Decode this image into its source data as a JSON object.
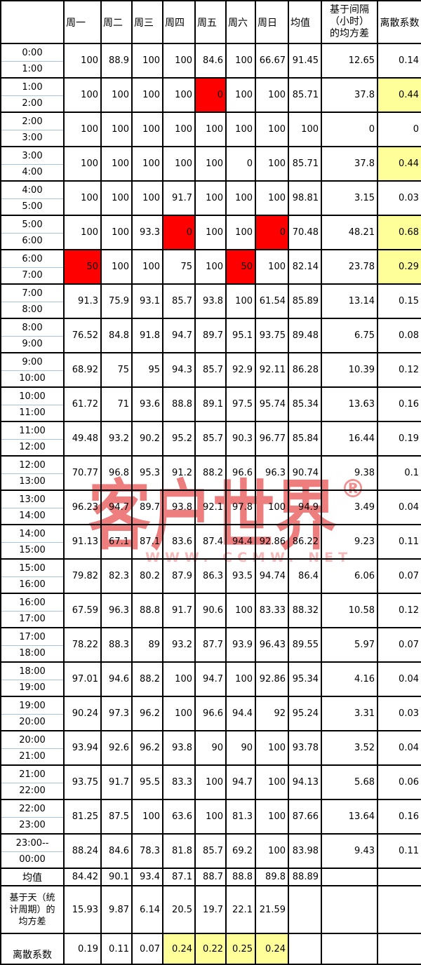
{
  "chart_data": {
    "type": "table",
    "columns": [
      "",
      "周一",
      "周二",
      "周三",
      "周四",
      "周五",
      "周六",
      "周日",
      "均值",
      "基于间隔\n（小时）\n的均方差",
      "离散系数"
    ],
    "time_rows": [
      {
        "time_top": "0:00",
        "time_bottom": "1:00",
        "values": [
          "100",
          "88.9",
          "100",
          "100",
          "84.6",
          "100",
          "66.67",
          "91.45",
          "12.65",
          "0.14"
        ],
        "red_cols": [],
        "highlight_cv": false
      },
      {
        "time_top": "1:00",
        "time_bottom": "2:00",
        "values": [
          "100",
          "100",
          "100",
          "100",
          "0",
          "100",
          "100",
          "85.71",
          "37.8",
          "0.44"
        ],
        "red_cols": [
          4
        ],
        "highlight_cv": true
      },
      {
        "time_top": "2:00",
        "time_bottom": "3:00",
        "values": [
          "100",
          "100",
          "100",
          "100",
          "100",
          "100",
          "100",
          "100",
          "0",
          "0"
        ],
        "red_cols": [],
        "highlight_cv": false
      },
      {
        "time_top": "3:00",
        "time_bottom": "4:00",
        "values": [
          "100",
          "100",
          "100",
          "100",
          "100",
          "0",
          "100",
          "85.71",
          "37.8",
          "0.44"
        ],
        "red_cols": [],
        "highlight_cv": true
      },
      {
        "time_top": "4:00",
        "time_bottom": "5:00",
        "values": [
          "100",
          "100",
          "100",
          "91.7",
          "100",
          "100",
          "100",
          "98.81",
          "3.15",
          "0.03"
        ],
        "red_cols": [],
        "highlight_cv": false
      },
      {
        "time_top": "5:00",
        "time_bottom": "6:00",
        "values": [
          "100",
          "100",
          "93.3",
          "0",
          "100",
          "100",
          "0",
          "70.48",
          "48.21",
          "0.68"
        ],
        "red_cols": [
          3,
          6
        ],
        "highlight_cv": true
      },
      {
        "time_top": "6:00",
        "time_bottom": "7:00",
        "values": [
          "50",
          "100",
          "100",
          "75",
          "100",
          "50",
          "100",
          "82.14",
          "23.78",
          "0.29"
        ],
        "red_cols": [
          0,
          5
        ],
        "highlight_cv": true
      },
      {
        "time_top": "7:00",
        "time_bottom": "8:00",
        "values": [
          "91.3",
          "75.9",
          "93.1",
          "85.7",
          "93.8",
          "100",
          "61.54",
          "85.89",
          "13.14",
          "0.15"
        ],
        "red_cols": [],
        "highlight_cv": false
      },
      {
        "time_top": "8:00",
        "time_bottom": "9:00",
        "values": [
          "76.52",
          "84.8",
          "91.8",
          "94.7",
          "89.7",
          "95.1",
          "93.75",
          "89.48",
          "6.75",
          "0.08"
        ],
        "red_cols": [],
        "highlight_cv": false
      },
      {
        "time_top": "9:00",
        "time_bottom": "10:00",
        "values": [
          "68.92",
          "75",
          "95",
          "94.3",
          "85.7",
          "92.9",
          "92.11",
          "86.28",
          "10.39",
          "0.12"
        ],
        "red_cols": [],
        "highlight_cv": false
      },
      {
        "time_top": "10:00",
        "time_bottom": "11:00",
        "values": [
          "61.72",
          "71",
          "93.6",
          "88.8",
          "89.1",
          "97.5",
          "95.74",
          "85.34",
          "13.63",
          "0.16"
        ],
        "red_cols": [],
        "highlight_cv": false
      },
      {
        "time_top": "11:00",
        "time_bottom": "12:00",
        "values": [
          "49.48",
          "93.2",
          "90.2",
          "95.2",
          "85.7",
          "90.3",
          "96.77",
          "85.84",
          "16.44",
          "0.19"
        ],
        "red_cols": [],
        "highlight_cv": false
      },
      {
        "time_top": "12:00",
        "time_bottom": "13:00",
        "values": [
          "70.77",
          "96.8",
          "95.3",
          "91.2",
          "88.2",
          "96.6",
          "96.3",
          "90.74",
          "9.38",
          "0.1"
        ],
        "red_cols": [],
        "highlight_cv": false
      },
      {
        "time_top": "13:00",
        "time_bottom": "14:00",
        "values": [
          "96.23",
          "94.7",
          "89.7",
          "93.8",
          "92.1",
          "97.8",
          "100",
          "94.9",
          "3.49",
          "0.04"
        ],
        "red_cols": [],
        "highlight_cv": false
      },
      {
        "time_top": "14:00",
        "time_bottom": "15:00",
        "values": [
          "91.13",
          "67.1",
          "87.1",
          "83.6",
          "87.4",
          "94.4",
          "92.86",
          "86.22",
          "9.23",
          "0.11"
        ],
        "red_cols": [],
        "highlight_cv": false
      },
      {
        "time_top": "15:00",
        "time_bottom": "16:00",
        "values": [
          "79.82",
          "82.3",
          "80.2",
          "87.9",
          "86.3",
          "93.5",
          "94.74",
          "86.4",
          "6.06",
          "0.07"
        ],
        "red_cols": [],
        "highlight_cv": false
      },
      {
        "time_top": "16:00",
        "time_bottom": "17:00",
        "values": [
          "67.59",
          "96.3",
          "88.8",
          "91.7",
          "90.6",
          "100",
          "83.33",
          "88.32",
          "10.58",
          "0.12"
        ],
        "red_cols": [],
        "highlight_cv": false
      },
      {
        "time_top": "17:00",
        "time_bottom": "18:00",
        "values": [
          "78.22",
          "88.3",
          "89",
          "93.2",
          "87.7",
          "93.9",
          "96.43",
          "89.55",
          "5.97",
          "0.07"
        ],
        "red_cols": [],
        "highlight_cv": false
      },
      {
        "time_top": "18:00",
        "time_bottom": "19:00",
        "values": [
          "97.01",
          "94.6",
          "88.2",
          "100",
          "94.7",
          "100",
          "92.86",
          "95.34",
          "4.16",
          "0.04"
        ],
        "red_cols": [],
        "highlight_cv": false
      },
      {
        "time_top": "19:00",
        "time_bottom": "20:00",
        "values": [
          "90.24",
          "97.3",
          "96.2",
          "100",
          "96.6",
          "94.4",
          "92",
          "95.24",
          "3.31",
          "0.03"
        ],
        "red_cols": [],
        "highlight_cv": false
      },
      {
        "time_top": "20:00",
        "time_bottom": "21:00",
        "values": [
          "93.94",
          "92.6",
          "96.2",
          "93.8",
          "90",
          "90",
          "100",
          "93.78",
          "3.52",
          "0.04"
        ],
        "red_cols": [],
        "highlight_cv": false
      },
      {
        "time_top": "21:00",
        "time_bottom": "22:00",
        "values": [
          "93.75",
          "91.7",
          "95.5",
          "83.3",
          "100",
          "94.7",
          "100",
          "94.13",
          "5.68",
          "0.06"
        ],
        "red_cols": [],
        "highlight_cv": false
      },
      {
        "time_top": "22:00",
        "time_bottom": "23:00",
        "values": [
          "81.25",
          "87.5",
          "100",
          "63.6",
          "100",
          "81.3",
          "100",
          "87.66",
          "13.64",
          "0.16"
        ],
        "red_cols": [],
        "highlight_cv": false
      },
      {
        "time_top": "23:00--",
        "time_bottom": "00:00",
        "values": [
          "88.24",
          "84.6",
          "78.3",
          "81.8",
          "85.7",
          "69.2",
          "100",
          "83.98",
          "9.43",
          "0.11"
        ],
        "red_cols": [],
        "highlight_cv": false
      }
    ],
    "summary_rows": [
      {
        "label": "均值",
        "values": [
          "84.42",
          "90.1",
          "93.4",
          "87.1",
          "88.7",
          "88.8",
          "89.8",
          "88.89",
          "",
          ""
        ],
        "yellow_cols": []
      },
      {
        "label": "基于天（统\n计周期）的\n均方差",
        "values": [
          "15.93",
          "9.87",
          "6.14",
          "20.5",
          "19.7",
          "22.1",
          "21.59",
          "",
          "",
          ""
        ],
        "yellow_cols": []
      },
      {
        "label": "离散系数",
        "values": [
          "0.19",
          "0.11",
          "0.07",
          "0.24",
          "0.22",
          "0.25",
          "0.24",
          "",
          "",
          ""
        ],
        "yellow_cols": [
          3,
          4,
          5,
          6
        ]
      }
    ]
  },
  "watermark": {
    "text": "客户世界",
    "registered_mark": "®",
    "subtext": "WWW. CCMW. NET"
  },
  "colors": {
    "cell_alert_red": "#ff0000",
    "cell_highlight_yellow": "#ffff99",
    "watermark_pink": "#ee7d7d",
    "watermark_sub_pink": "#f6b9b9",
    "time_divider_blue": "#a8c2e0",
    "grid_black": "#000000"
  }
}
